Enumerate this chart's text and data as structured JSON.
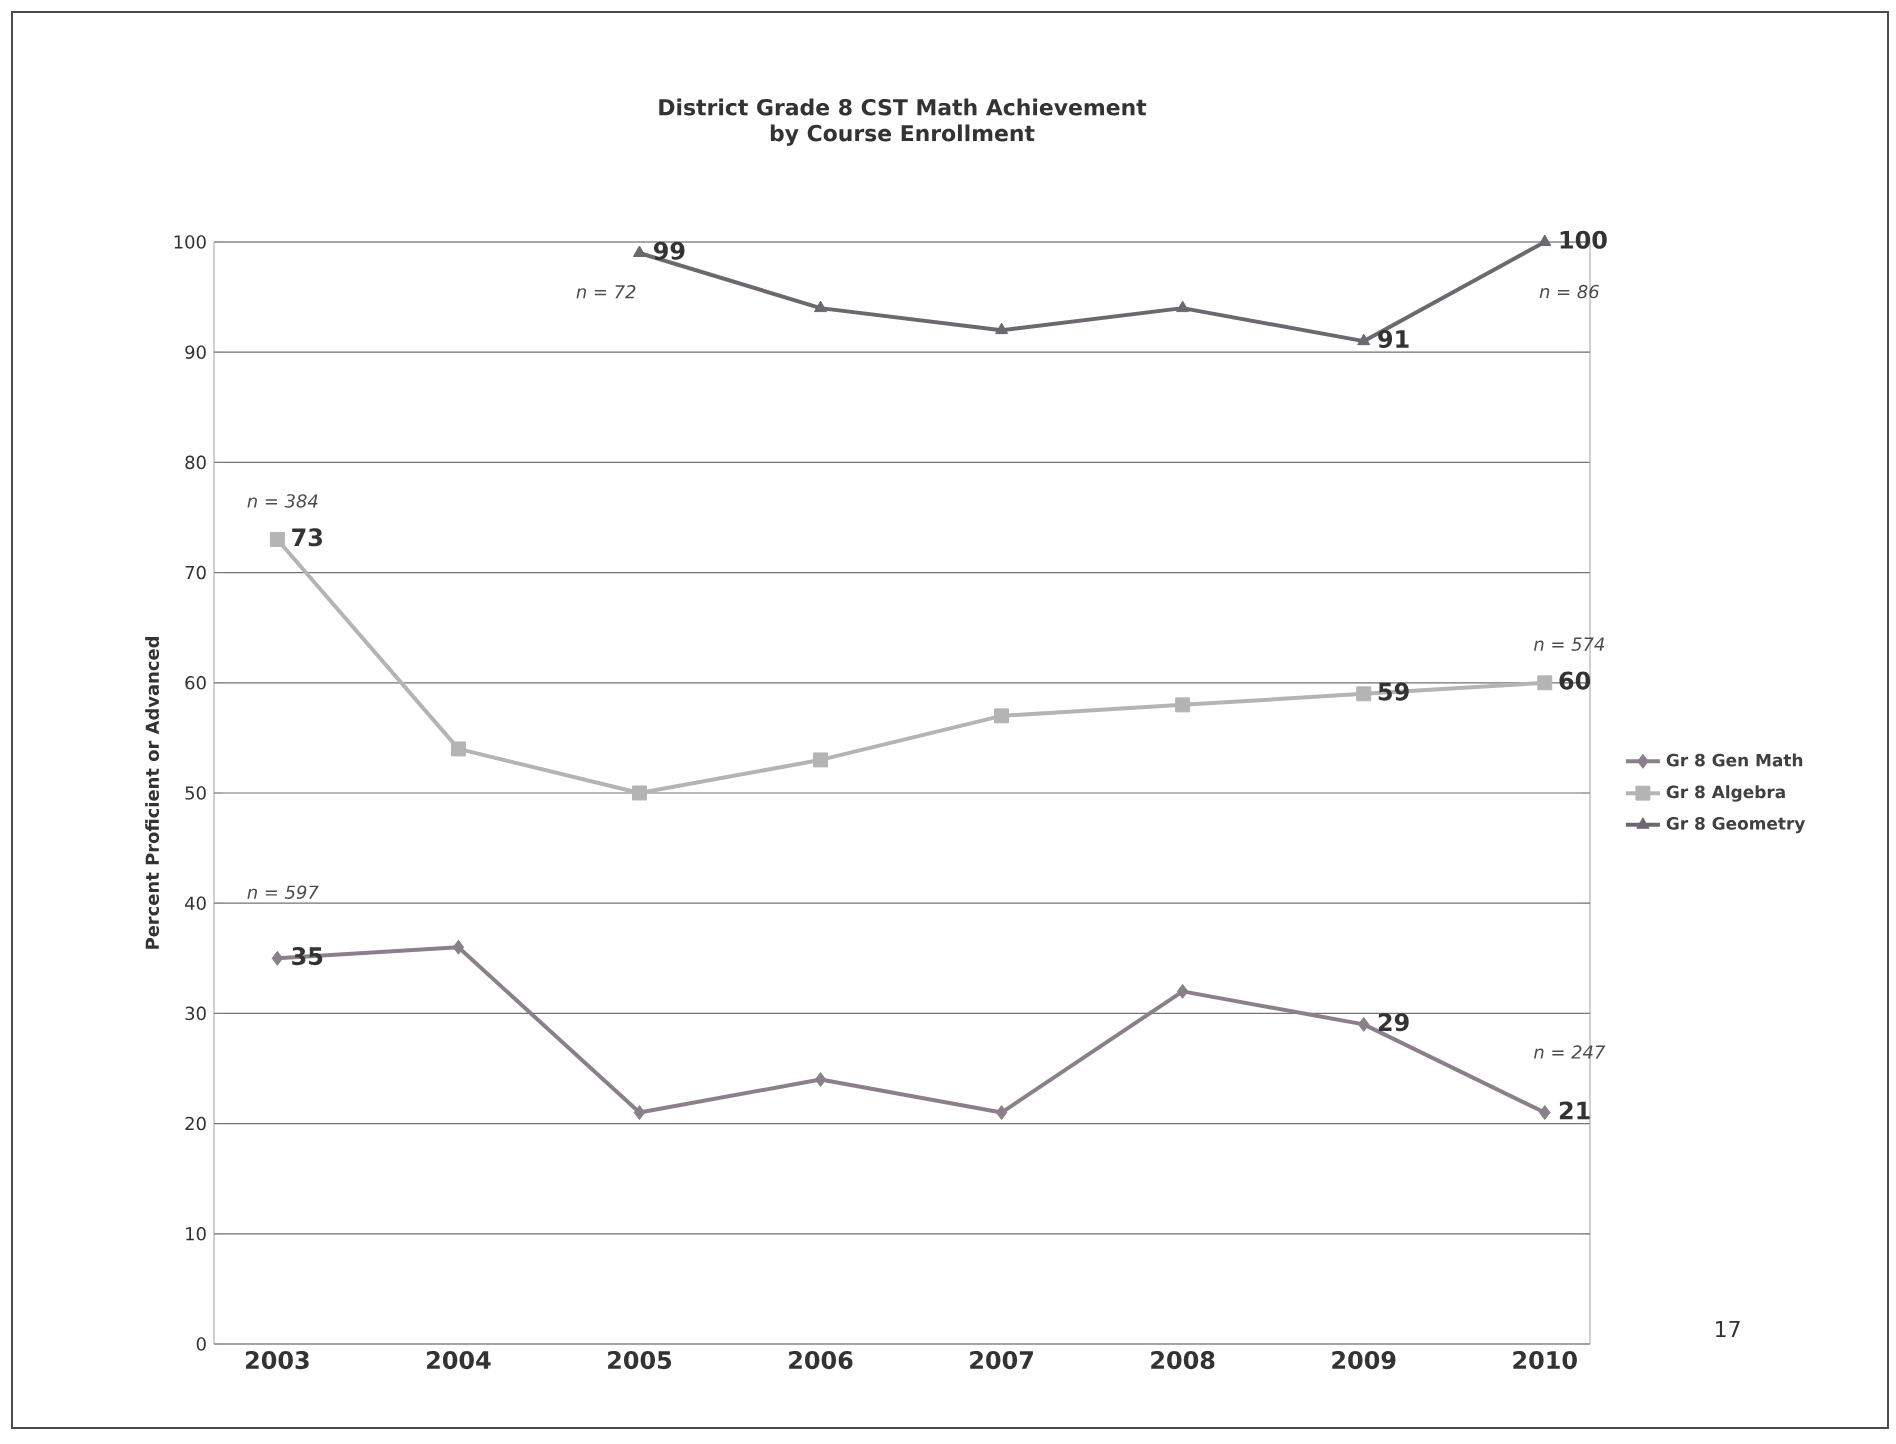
{
  "chart_data": {
    "type": "line",
    "title": "District Grade 8 CST Math Achievement",
    "subtitle": "by Course Enrollment",
    "ylabel": "Percent Proficient or Advanced",
    "categories": [
      "2003",
      "2004",
      "2005",
      "2006",
      "2007",
      "2008",
      "2009",
      "2010"
    ],
    "series": [
      {
        "name": "Gr 8 Gen Math",
        "color": "#8c7f8c",
        "marker": "diamond",
        "values": [
          35,
          36,
          21,
          24,
          21,
          32,
          29,
          21
        ],
        "value_labels": [
          "35",
          null,
          null,
          null,
          null,
          null,
          "29",
          "21"
        ]
      },
      {
        "name": "Gr 8 Algebra",
        "color": "#b4b4b4",
        "marker": "square",
        "values": [
          73,
          54,
          50,
          53,
          57,
          58,
          59,
          60
        ],
        "value_labels": [
          "73",
          null,
          null,
          null,
          null,
          null,
          "59",
          "60"
        ]
      },
      {
        "name": "Gr 8 Geometry",
        "color": "#6d6870",
        "marker": "triangle",
        "values": [
          null,
          null,
          99,
          94,
          92,
          94,
          91,
          100
        ],
        "value_labels": [
          null,
          null,
          "99",
          null,
          null,
          null,
          "91",
          "100"
        ]
      }
    ],
    "ylim": [
      0,
      100
    ],
    "yticks": [
      0,
      10,
      20,
      30,
      40,
      50,
      60,
      70,
      80,
      90,
      100
    ],
    "grid": "y",
    "legend": "right",
    "line_style": "solid",
    "annotations": [
      "n = 597",
      "n = 384",
      "n = 72",
      "n = 86",
      "n = 574",
      "n = 247",
      "17"
    ]
  }
}
